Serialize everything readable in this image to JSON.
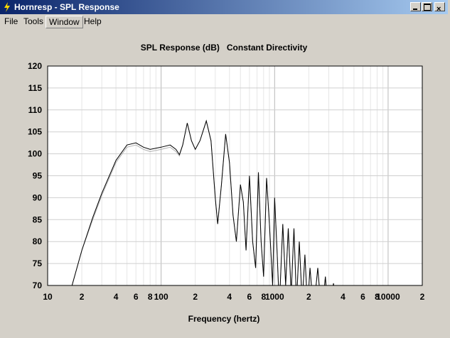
{
  "window": {
    "title": "Hornresp - SPL Response"
  },
  "menu": [
    "File",
    "Tools",
    "Window",
    "Help"
  ],
  "chart_data": {
    "type": "line",
    "title": "SPL Response (dB)   Constant Directivity",
    "xlabel": "Frequency (hertz)",
    "xscale": "log",
    "grid": true,
    "xlim": [
      10,
      20000
    ],
    "ylim": [
      70,
      120
    ],
    "xticks": [
      10,
      {
        "value": 20,
        "label": "2"
      },
      {
        "value": 40,
        "label": "4"
      },
      {
        "value": 60,
        "label": "6"
      },
      {
        "value": 80,
        "label": "8"
      },
      100,
      {
        "value": 200,
        "label": "2"
      },
      {
        "value": 400,
        "label": "4"
      },
      {
        "value": 600,
        "label": "6"
      },
      {
        "value": 800,
        "label": "8"
      },
      1000,
      {
        "value": 2000,
        "label": "2"
      },
      {
        "value": 4000,
        "label": "4"
      },
      {
        "value": 6000,
        "label": "6"
      },
      {
        "value": 8000,
        "label": "8"
      },
      10000,
      {
        "value": 20000,
        "label": "2"
      }
    ],
    "xminorticks": [
      30,
      50,
      70,
      90,
      300,
      500,
      700,
      900,
      3000,
      5000,
      7000,
      9000
    ],
    "yticks": [
      70,
      75,
      80,
      85,
      90,
      95,
      100,
      105,
      110,
      115,
      120
    ],
    "x": [
      16,
      20,
      25,
      30,
      40,
      50,
      60,
      70,
      80,
      100,
      120,
      135,
      145,
      155,
      170,
      185,
      200,
      220,
      250,
      275,
      300,
      315,
      340,
      370,
      400,
      430,
      460,
      500,
      530,
      560,
      600,
      640,
      680,
      720,
      760,
      800,
      850,
      900,
      960,
      1000,
      1050,
      1100,
      1180,
      1250,
      1320,
      1400,
      1480,
      1560,
      1650,
      1750,
      1850,
      1950,
      2050,
      2200,
      2400,
      2600,
      2800,
      3000,
      3300,
      3600
    ],
    "series": [
      {
        "color": "#b0b0b0",
        "values": [
          69,
          78,
          85,
          90.5,
          98,
          101.5,
          102,
          101,
          100.5,
          101,
          101.5,
          100.5,
          99.5,
          102,
          107,
          103,
          101,
          103,
          107.5,
          103,
          90,
          84,
          93,
          104.5,
          98,
          86,
          80,
          93,
          89,
          78,
          95,
          80,
          74,
          95.8,
          80,
          72,
          94.5,
          84,
          70,
          90,
          78,
          65,
          84,
          70,
          83,
          68,
          83,
          66,
          80,
          66,
          77,
          65,
          74,
          64,
          74,
          63,
          72,
          62,
          70.5,
          60
        ]
      },
      {
        "color": "#000000",
        "values": [
          69,
          78,
          85.5,
          91,
          98.5,
          102,
          102.5,
          101.5,
          101,
          101.5,
          102,
          101,
          99.8,
          102,
          107,
          103,
          101,
          103,
          107.5,
          103,
          90,
          84,
          93,
          104.5,
          98,
          86,
          80,
          93,
          89,
          78,
          95,
          80,
          74,
          95.8,
          80,
          72,
          94.5,
          84,
          70,
          90,
          78,
          65,
          84,
          70,
          83,
          68,
          83,
          66,
          80,
          66,
          77,
          65,
          74,
          64,
          74,
          63,
          72,
          62,
          70.5,
          60
        ]
      }
    ]
  }
}
